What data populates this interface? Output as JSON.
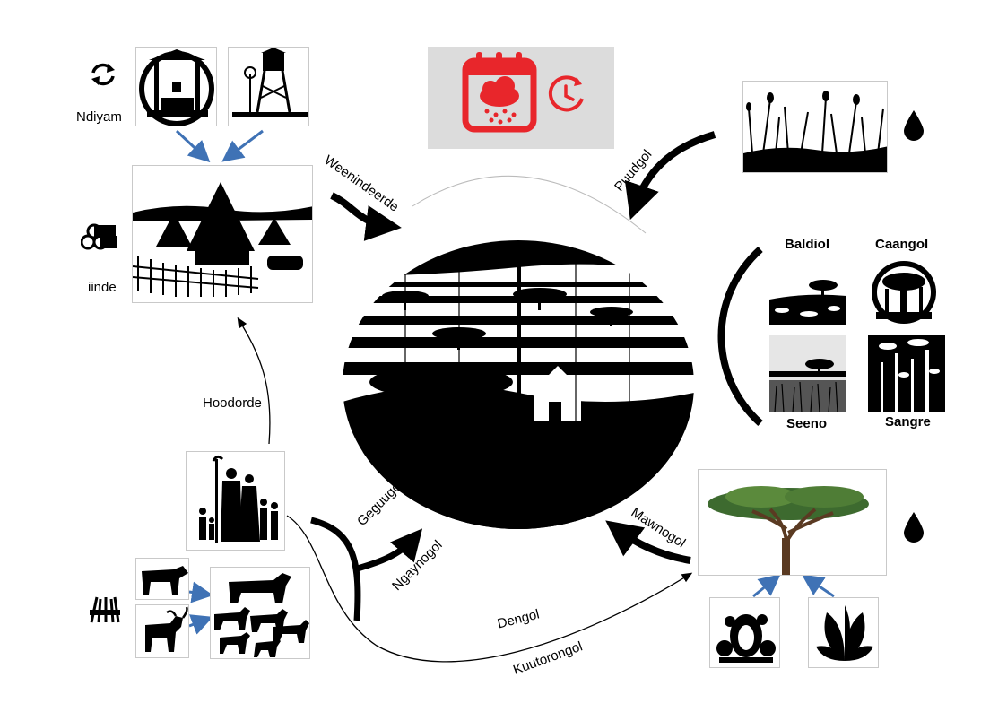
{
  "labels": {
    "ndiyam": "Ndiyam",
    "iinde": "iinde",
    "hoodorde": "Hoodorde",
    "weenindeerde": "Weenindeerde",
    "puudgol": "Puudgol",
    "geguugol": "Geguugol",
    "ngaynogol": "Ngaynogol",
    "dengol": "Dengol",
    "kuutorongol": "Kuutorongol",
    "mawnogol": "Mawnogol"
  },
  "vegetation": {
    "baldiol": "Baldiol",
    "caangol": "Caangol",
    "seeno": "Seeno",
    "sangre": "Sangre"
  },
  "colors": {
    "calendar_red": "#e8262b",
    "arrow_blue": "#3f72b5",
    "ink": "#000000",
    "panel_gray": "#dcdcdc"
  },
  "icons": [
    "refresh-icon",
    "firewood-icon",
    "hay-bundle-icon",
    "water-drop-icon",
    "calendar-rain-icon",
    "clock-refresh-icon"
  ]
}
